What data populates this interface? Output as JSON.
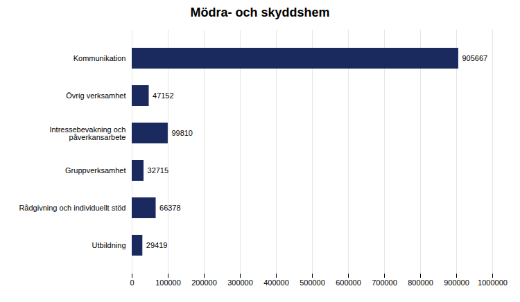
{
  "chart_data": {
    "type": "bar",
    "title": "Mödra- och skyddshem",
    "orientation": "horizontal",
    "categories": [
      "Kommunikation",
      "Övrig verksamhet",
      "Intressebevakning och\npåverkansarbete",
      "Gruppverksamhet",
      "Rådgivning och individuellt stöd",
      "Utbildning"
    ],
    "values": [
      905667,
      47152,
      99810,
      32715,
      66378,
      29419
    ],
    "color": "#1a2a5e",
    "xlim": [
      0,
      1000000
    ],
    "xticks": [
      0,
      100000,
      200000,
      300000,
      400000,
      500000,
      600000,
      700000,
      800000,
      900000,
      1000000
    ],
    "grid": true,
    "data_labels": true
  }
}
